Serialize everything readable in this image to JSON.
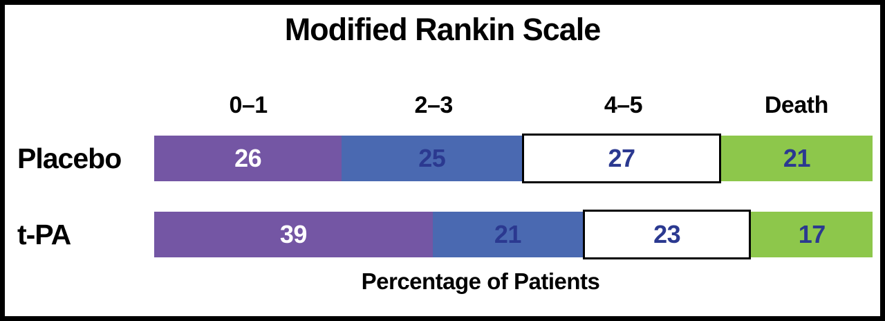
{
  "frame": {
    "border_color": "#000000",
    "background_color": "#FFFFFF"
  },
  "chart_data": {
    "type": "bar",
    "subtype": "horizontal-stacked",
    "title": "Modified Rankin Scale",
    "xlabel": "Percentage of Patients",
    "categories": [
      "0–1",
      "2–3",
      "4–5",
      "Death"
    ],
    "rows": [
      {
        "label": "Placebo",
        "values": [
          26,
          25,
          27,
          21
        ]
      },
      {
        "label": "t-PA",
        "values": [
          39,
          21,
          23,
          17
        ]
      }
    ],
    "segment_colors": [
      "#7456A4",
      "#4A69B1",
      "#FFFFFF",
      "#8DC74B"
    ],
    "value_text_colors": [
      "#FFFFFF",
      "#2B3990",
      "#2B3990",
      "#2B3990"
    ],
    "outlined_segment_index": 2,
    "xlim": [
      0,
      100
    ],
    "grid": false,
    "legend_position": "category-headers-above-bars"
  }
}
